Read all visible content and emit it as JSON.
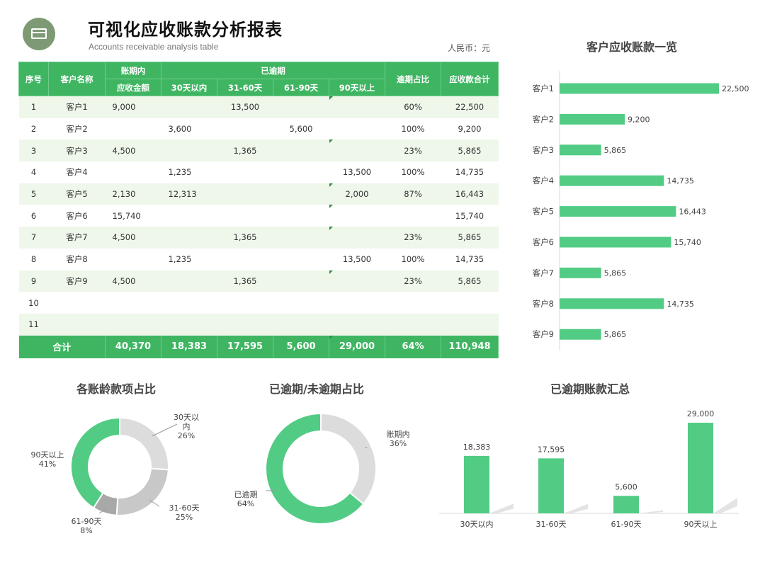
{
  "header": {
    "title": "可视化应收账款分析报表",
    "subtitle": "Accounts receivable analysis table",
    "currency": "人民币：元"
  },
  "table": {
    "headers": {
      "seq": "序号",
      "customer": "客户名称",
      "in_term_group": "账期内",
      "in_term_sub": "应收金额",
      "overdue_group": "已逾期",
      "d30": "30天以内",
      "d31_60": "31-60天",
      "d61_90": "61-90天",
      "d90": "90天以上",
      "overdue_pct": "逾期占比",
      "total": "应收款合计"
    },
    "rows": [
      {
        "seq": "1",
        "customer": "客户1",
        "in_term": "9,000",
        "d30": "",
        "d31_60": "13,500",
        "d61_90": "",
        "d90": "",
        "pct": "60%",
        "total": "22,500"
      },
      {
        "seq": "2",
        "customer": "客户2",
        "in_term": "",
        "d30": "3,600",
        "d31_60": "",
        "d61_90": "5,600",
        "d90": "",
        "pct": "100%",
        "total": "9,200"
      },
      {
        "seq": "3",
        "customer": "客户3",
        "in_term": "4,500",
        "d30": "",
        "d31_60": "1,365",
        "d61_90": "",
        "d90": "",
        "pct": "23%",
        "total": "5,865"
      },
      {
        "seq": "4",
        "customer": "客户4",
        "in_term": "",
        "d30": "1,235",
        "d31_60": "",
        "d61_90": "",
        "d90": "13,500",
        "pct": "100%",
        "total": "14,735"
      },
      {
        "seq": "5",
        "customer": "客户5",
        "in_term": "2,130",
        "d30": "12,313",
        "d31_60": "",
        "d61_90": "",
        "d90": "2,000",
        "pct": "87%",
        "total": "16,443"
      },
      {
        "seq": "6",
        "customer": "客户6",
        "in_term": "15,740",
        "d30": "",
        "d31_60": "",
        "d61_90": "",
        "d90": "",
        "pct": "",
        "total": "15,740"
      },
      {
        "seq": "7",
        "customer": "客户7",
        "in_term": "4,500",
        "d30": "",
        "d31_60": "1,365",
        "d61_90": "",
        "d90": "",
        "pct": "23%",
        "total": "5,865"
      },
      {
        "seq": "8",
        "customer": "客户8",
        "in_term": "",
        "d30": "1,235",
        "d31_60": "",
        "d61_90": "",
        "d90": "13,500",
        "pct": "100%",
        "total": "14,735"
      },
      {
        "seq": "9",
        "customer": "客户9",
        "in_term": "4,500",
        "d30": "",
        "d31_60": "1,365",
        "d61_90": "",
        "d90": "",
        "pct": "23%",
        "total": "5,865"
      },
      {
        "seq": "10",
        "customer": "",
        "in_term": "",
        "d30": "",
        "d31_60": "",
        "d61_90": "",
        "d90": "",
        "pct": "",
        "total": ""
      },
      {
        "seq": "11",
        "customer": "",
        "in_term": "",
        "d30": "",
        "d31_60": "",
        "d61_90": "",
        "d90": "",
        "pct": "",
        "total": ""
      }
    ],
    "footer": {
      "label": "合计",
      "in_term": "40,370",
      "d30": "18,383",
      "d31_60": "17,595",
      "d61_90": "5,600",
      "d90": "29,000",
      "pct": "64%",
      "total": "110,948"
    }
  },
  "colors": {
    "accent": "#3fb562",
    "bar": "#52cc84",
    "light_row": "#eef7ea",
    "donut_grey": [
      "#dcdcdc",
      "#c8c8c8",
      "#a8a8a8"
    ],
    "logo": "#7d9a74"
  },
  "chart_data": [
    {
      "type": "bar",
      "orientation": "horizontal",
      "title": "客户应收账款一览",
      "categories": [
        "客户1",
        "客户2",
        "客户3",
        "客户4",
        "客户5",
        "客户6",
        "客户7",
        "客户8",
        "客户9"
      ],
      "values": [
        22500,
        9200,
        5865,
        14735,
        16443,
        15740,
        5865,
        14735,
        5865
      ],
      "labels": [
        "22,500",
        "9,200",
        "5,865",
        "14,735",
        "16,443",
        "15,740",
        "5,865",
        "14,735",
        "5,865"
      ],
      "xlim": [
        0,
        22500
      ],
      "grid": false
    },
    {
      "type": "pie",
      "style": "donut",
      "title": "各账龄款项占比",
      "categories": [
        "30天以内",
        "31-60天",
        "61-90天",
        "90天以上"
      ],
      "values": [
        26,
        25,
        8,
        41
      ],
      "labels": [
        "26%",
        "25%",
        "8%",
        "41%"
      ]
    },
    {
      "type": "pie",
      "style": "donut",
      "title": "已逾期/未逾期占比",
      "categories": [
        "账期内",
        "已逾期"
      ],
      "values": [
        36,
        64
      ],
      "labels": [
        "36%",
        "64%"
      ]
    },
    {
      "type": "bar",
      "title": "已逾期账款汇总",
      "categories": [
        "30天以内",
        "31-60天",
        "61-90天",
        "90天以上"
      ],
      "values": [
        18383,
        17595,
        5600,
        29000
      ],
      "labels": [
        "18,383",
        "17,595",
        "5,600",
        "29,000"
      ],
      "ylim": [
        0,
        29000
      ],
      "grid": false
    }
  ]
}
